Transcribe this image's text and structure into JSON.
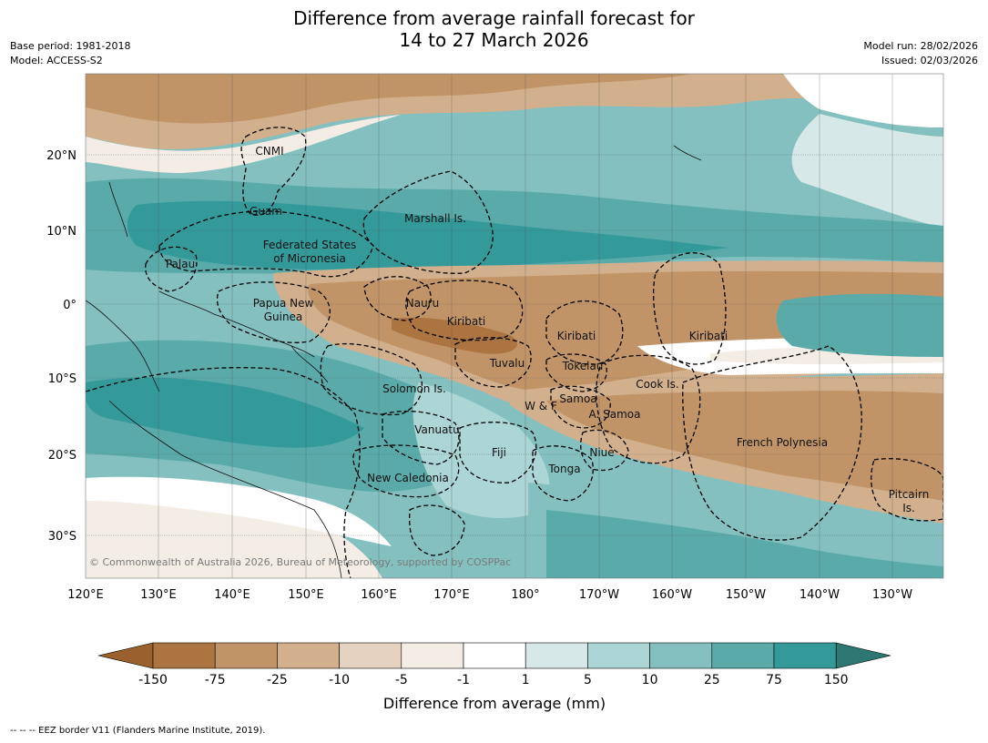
{
  "title": {
    "line1": "Difference from average rainfall forecast for",
    "line2": "14 to 27 March 2026"
  },
  "meta_left": {
    "base_period": "Base period: 1981-2018",
    "model": "Model: ACCESS-S2"
  },
  "meta_right": {
    "model_run": "Model run: 28/02/2026",
    "issued": "Issued: 02/03/2026"
  },
  "axes": {
    "lon_labels": [
      "120°E",
      "130°E",
      "140°E",
      "150°E",
      "160°E",
      "170°E",
      "180°",
      "170°W",
      "160°W",
      "150°W",
      "140°W",
      "130°W"
    ],
    "lat_labels": [
      "20°N",
      "10°N",
      "0°",
      "10°S",
      "20°S",
      "30°S"
    ]
  },
  "regions": {
    "cnmi": "CNMI",
    "guam": "Guam",
    "marshall": "Marshall Is.",
    "fsm_1": "Federated States",
    "fsm_2": "of Micronesia",
    "palau": "Palau",
    "png_1": "Papua New",
    "png_2": "Guinea",
    "nauru": "Nauru",
    "kiribati_west": "Kiribati",
    "kiribati_central": "Kiribati",
    "kiribati_east": "Kiribati",
    "tuvalu": "Tuvalu",
    "tokelau": "Tokelau",
    "cook": "Cook Is.",
    "solomon": "Solomon Is.",
    "wf": "W & F",
    "samoa": "Samoa",
    "am_samoa": "A. Samoa",
    "vanuatu": "Vanuatu",
    "fiji": "Fiji",
    "niue": "Niue",
    "french_polynesia": "French Polynesia",
    "tonga": "Tonga",
    "new_caledonia": "New Caledonia",
    "pitcairn_1": "Pitcairn",
    "pitcairn_2": "Is."
  },
  "copyright": "© Commonwealth of Australia 2026, Bureau of Meteorology, supported by COSPPac",
  "colorbar": {
    "ticks": [
      "-150",
      "-75",
      "-25",
      "-10",
      "-5",
      "-1",
      "1",
      "5",
      "10",
      "25",
      "75",
      "150"
    ],
    "colors": [
      "#9a602d",
      "#ac7440",
      "#c19467",
      "#d2b08d",
      "#e5d2c0",
      "#f3ede6",
      "#ffffff",
      "#d6e9e8",
      "#acd5d5",
      "#84c0c0",
      "#5aaaaa",
      "#349999",
      "#2d7672"
    ],
    "title": "Difference from average (mm)"
  },
  "footnote": "--  --  -- EEZ border V11 (Flanders Marine Institute, 2019)."
}
